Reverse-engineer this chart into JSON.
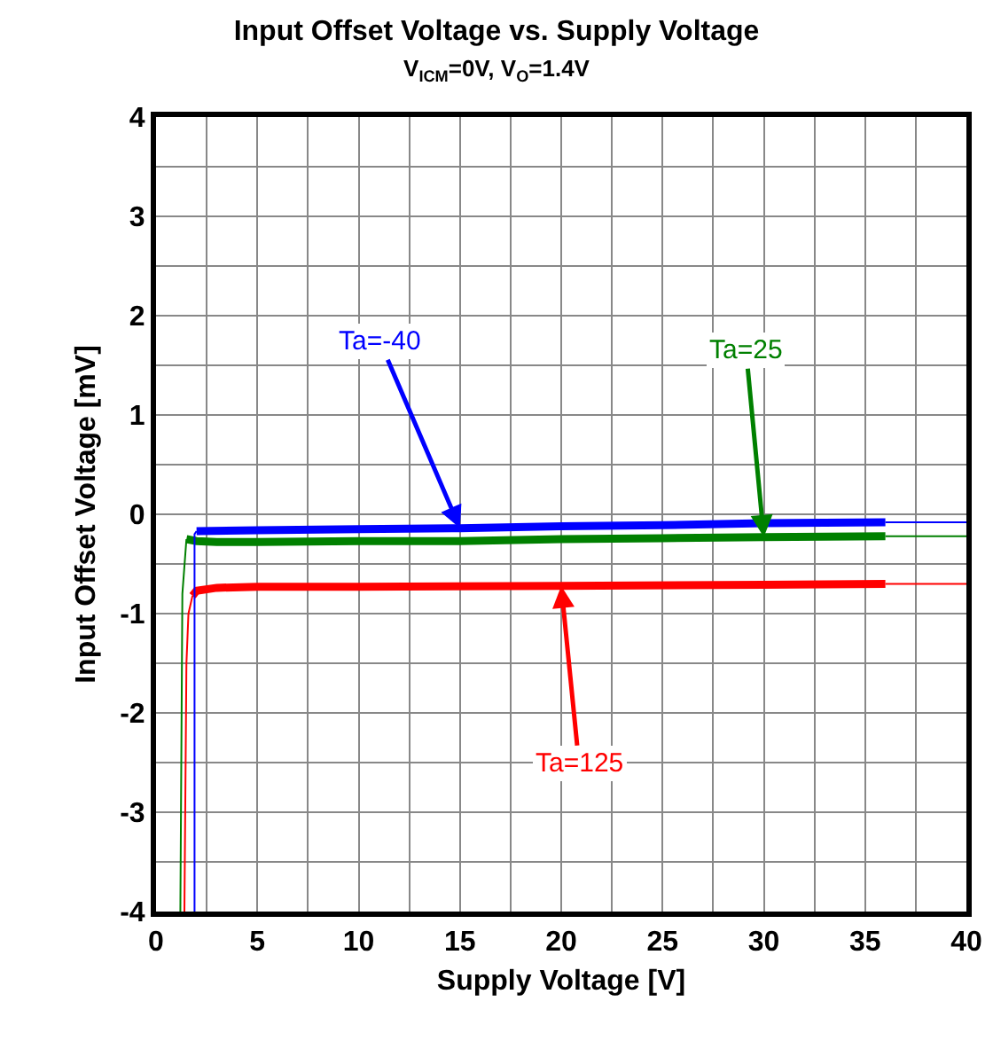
{
  "chart_data": {
    "type": "line",
    "title": "Input Offset Voltage vs. Supply Voltage",
    "subtitle": "V$_{ICM}$=0V, V$_{O}$=1.4V",
    "xlabel": "Supply Voltage [V]",
    "ylabel": "Input Offset Voltage [mV]",
    "xlim": [
      0,
      40
    ],
    "ylim": [
      -4,
      4
    ],
    "xticks": [
      0,
      {
        "value": 2.5,
        "label": null
      },
      5,
      {
        "value": 7.5,
        "label": null
      },
      10,
      {
        "value": 12.5,
        "label": null
      },
      15,
      {
        "value": 17.5,
        "label": null
      },
      20,
      {
        "value": 22.5,
        "label": null
      },
      25,
      {
        "value": 27.5,
        "label": null
      },
      30,
      {
        "value": 32.5,
        "label": null
      },
      35,
      {
        "value": 37.5,
        "label": null
      },
      40
    ],
    "yticks": [
      -4,
      {
        "value": -3.5,
        "label": null
      },
      -3,
      {
        "value": -2.5,
        "label": null
      },
      -2,
      {
        "value": -1.5,
        "label": null
      },
      -1,
      {
        "value": -0.5,
        "label": null
      },
      0,
      {
        "value": 0.5,
        "label": null
      },
      1,
      {
        "value": 1.5,
        "label": null
      },
      2,
      {
        "value": 2.5,
        "label": null
      },
      3,
      {
        "value": 3.5,
        "label": null
      },
      4
    ],
    "grid": true,
    "legend": false,
    "marker": "none",
    "line_style": "solid",
    "series": [
      {
        "name": "Ta=-40",
        "color": "#0000ff",
        "x": [
          2,
          5,
          10,
          15,
          20,
          25,
          30,
          36
        ],
        "values": [
          -0.17,
          -0.16,
          -0.15,
          -0.14,
          -0.12,
          -0.11,
          -0.09,
          -0.08
        ]
      },
      {
        "name": "Ta=25",
        "color": "#008000",
        "x": [
          1.5,
          2,
          3,
          5,
          10,
          15,
          20,
          25,
          30,
          36
        ],
        "values": [
          -0.25,
          -0.27,
          -0.28,
          -0.28,
          -0.27,
          -0.27,
          -0.25,
          -0.24,
          -0.23,
          -0.22
        ]
      },
      {
        "name": "Ta=125",
        "color": "#ff0000",
        "x": [
          1.8,
          2,
          3,
          5,
          10,
          20,
          30,
          36
        ],
        "values": [
          -0.82,
          -0.77,
          -0.74,
          -0.73,
          -0.73,
          -0.72,
          -0.71,
          -0.7
        ]
      },
      {
        "color": "#0000ff",
        "x": [
          1.9,
          1.9,
          2
        ],
        "values": [
          -4,
          -0.2,
          -0.17
        ]
      },
      {
        "color": "#0000ff",
        "x": [
          36,
          40
        ],
        "values": [
          -0.08,
          -0.08
        ]
      },
      {
        "color": "#008000",
        "x": [
          1.2,
          1.3,
          1.5
        ],
        "values": [
          -4,
          -0.8,
          -0.25
        ]
      },
      {
        "color": "#008000",
        "x": [
          36,
          40
        ],
        "values": [
          -0.22,
          -0.22
        ]
      },
      {
        "color": "#ff0000",
        "x": [
          1.4,
          1.5,
          1.6,
          1.8
        ],
        "values": [
          -4,
          -1.5,
          -1,
          -0.82
        ]
      },
      {
        "color": "#ff0000",
        "x": [
          36,
          40
        ],
        "values": [
          -0.7,
          -0.7
        ]
      }
    ]
  }
}
